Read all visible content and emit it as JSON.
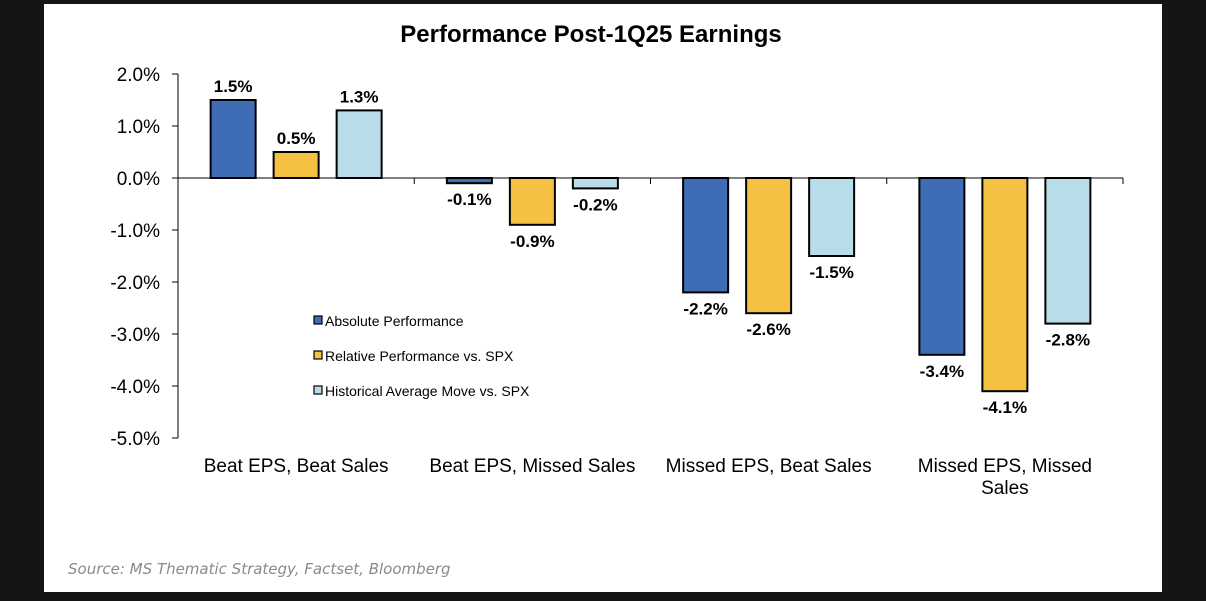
{
  "chart_data": {
    "type": "bar",
    "title": "Performance Post-1Q25 Earnings",
    "xlabel": "",
    "ylabel": "",
    "ylim": [
      -5.0,
      2.0
    ],
    "yticks": [
      "2.0%",
      "1.0%",
      "0.0%",
      "-1.0%",
      "-2.0%",
      "-3.0%",
      "-4.0%",
      "-5.0%"
    ],
    "ytick_values": [
      2,
      1,
      0,
      -1,
      -2,
      -3,
      -4,
      -5
    ],
    "grid": false,
    "legend_position": "center-left",
    "categories": [
      [
        "Beat EPS, Beat Sales"
      ],
      [
        "Beat EPS, Missed Sales"
      ],
      [
        "Missed EPS, Beat Sales"
      ],
      [
        "Missed EPS, Missed",
        "Sales"
      ]
    ],
    "series": [
      {
        "name": "Absolute Performance",
        "color": "#3f6db5",
        "values": [
          1.5,
          -0.1,
          -2.2,
          -3.4
        ],
        "labels": [
          "1.5%",
          "-0.1%",
          "-2.2%",
          "-3.4%"
        ]
      },
      {
        "name": "Relative Performance vs. SPX",
        "color": "#f5c143",
        "values": [
          0.5,
          -0.9,
          -2.6,
          -4.1
        ],
        "labels": [
          "0.5%",
          "-0.9%",
          "-2.6%",
          "-4.1%"
        ]
      },
      {
        "name": "Historical Average Move vs. SPX",
        "color": "#b8dde8",
        "values": [
          1.3,
          -0.2,
          -1.5,
          -2.8
        ],
        "labels": [
          "1.3%",
          "-0.2%",
          "-1.5%",
          "-2.8%"
        ]
      }
    ]
  },
  "source": "Source: MS Thematic Strategy, Factset, Bloomberg"
}
